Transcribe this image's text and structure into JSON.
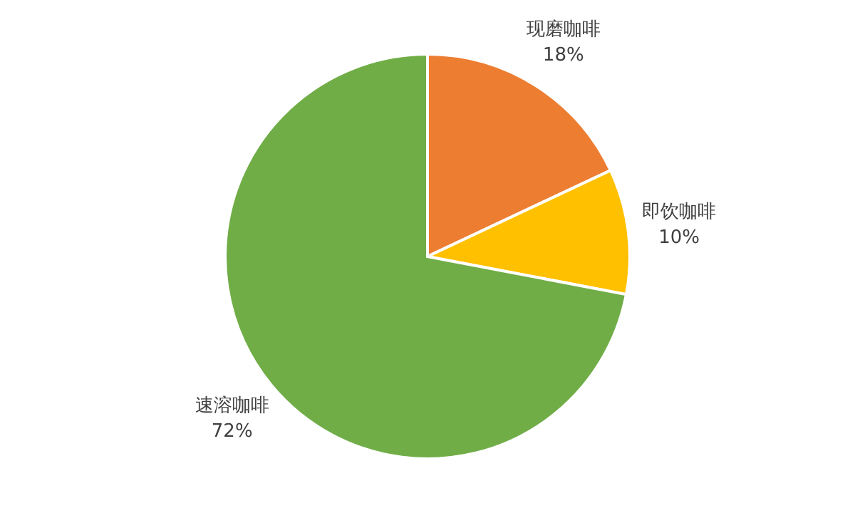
{
  "chart_data": {
    "type": "pie",
    "categories": [
      "现磨咖啡",
      "即饮咖啡",
      "速溶咖啡"
    ],
    "values": [
      18,
      10,
      72
    ],
    "value_labels": [
      "18%",
      "10%",
      "72%"
    ],
    "colors": [
      "#ed7d31",
      "#ffc000",
      "#70ad47"
    ]
  }
}
